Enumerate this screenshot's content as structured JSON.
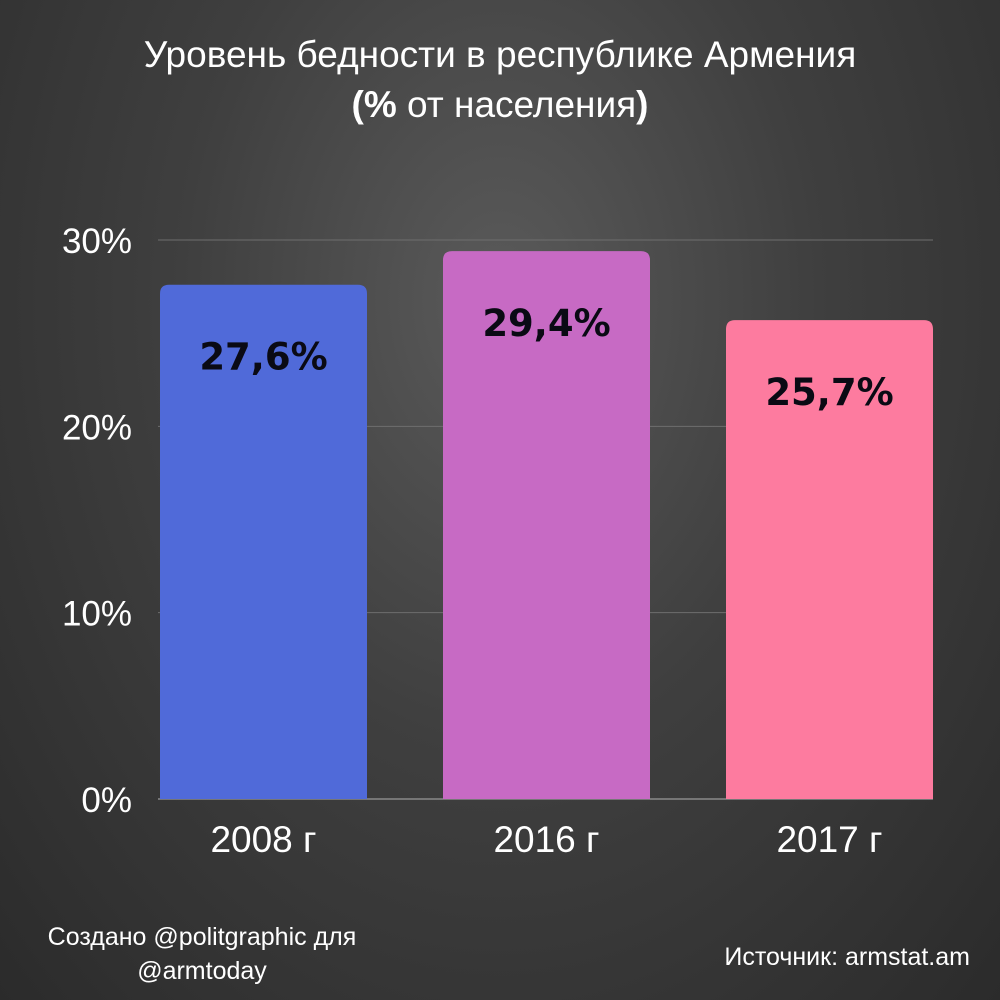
{
  "title": {
    "line1": "Уровень бедности в республике Армения",
    "line2_prefix": "(",
    "line2_percent": "%",
    "line2_middle": " от населения",
    "line2_suffix": ")"
  },
  "footer": {
    "credit_line1": "Создано @politgraphic для",
    "credit_line2": "@armtoday",
    "source": "Источник: armstat.am"
  },
  "chart_data": {
    "type": "bar",
    "categories": [
      "2008 г",
      "2016 г",
      "2017 г"
    ],
    "values": [
      27.6,
      29.4,
      25.7
    ],
    "value_labels": [
      "27,6%",
      "29,4%",
      "25,7%"
    ],
    "colors": [
      "#506ad9",
      "#c76ac4",
      "#fd7b9f"
    ],
    "yticks": [
      0,
      10,
      20,
      30
    ],
    "ytick_labels": [
      "0%",
      "10%",
      "20%",
      "30%"
    ],
    "ylim": [
      0,
      30
    ],
    "grid": true,
    "legend": "none"
  }
}
